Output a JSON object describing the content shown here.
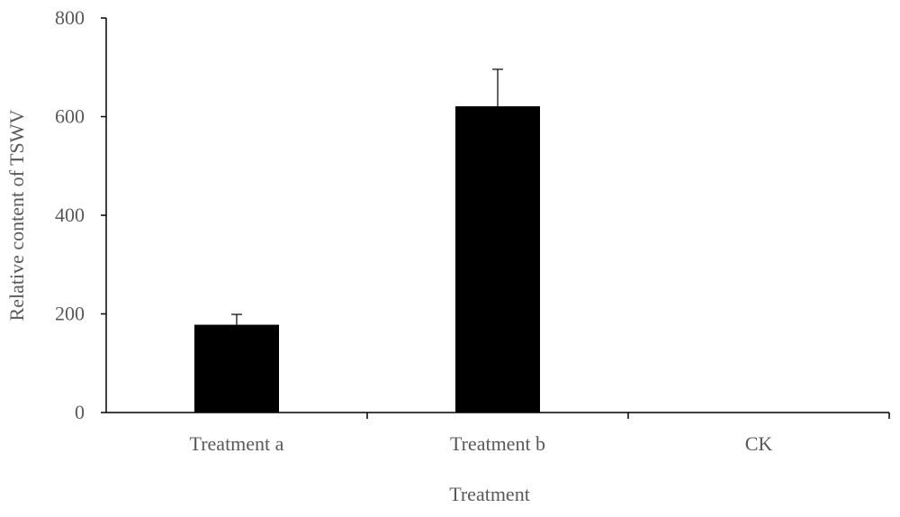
{
  "chart_data": {
    "type": "bar",
    "categories": [
      "Treatment a",
      "Treatment b",
      "CK"
    ],
    "values": [
      178,
      621,
      0
    ],
    "error_plus": [
      21,
      75,
      0
    ],
    "xlabel": "Treatment",
    "ylabel": "Relative content of TSWV",
    "ylim": [
      0,
      800
    ],
    "yticks": [
      0,
      200,
      400,
      600,
      800
    ],
    "grid": false,
    "legend": "none",
    "bar_color": "#000000",
    "axis_color": "#000000"
  }
}
